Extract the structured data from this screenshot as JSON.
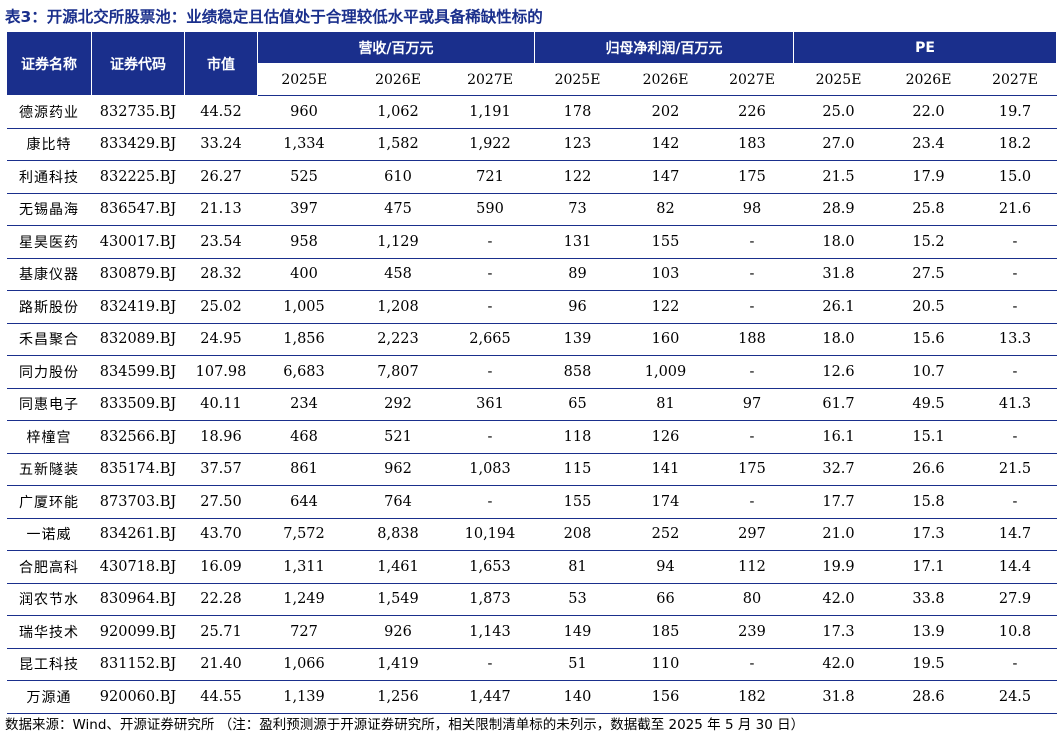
{
  "title": "表3：开源北交所股票池：业绩稳定且估值处于合理较低水平或具备稀缺性标的",
  "headers": {
    "name": "证券名称",
    "code": "证券代码",
    "mktcap": "市值",
    "revenue_group": "营收/百万元",
    "profit_group": "归母净利润/百万元",
    "pe_group": "PE",
    "years": [
      "2025E",
      "2026E",
      "2027E"
    ]
  },
  "rows": [
    {
      "name": "德源药业",
      "code": "832735.BJ",
      "mktcap": "44.52",
      "rev": [
        "960",
        "1,062",
        "1,191"
      ],
      "np": [
        "178",
        "202",
        "226"
      ],
      "pe": [
        "25.0",
        "22.0",
        "19.7"
      ]
    },
    {
      "name": "康比特",
      "code": "833429.BJ",
      "mktcap": "33.24",
      "rev": [
        "1,334",
        "1,582",
        "1,922"
      ],
      "np": [
        "123",
        "142",
        "183"
      ],
      "pe": [
        "27.0",
        "23.4",
        "18.2"
      ]
    },
    {
      "name": "利通科技",
      "code": "832225.BJ",
      "mktcap": "26.27",
      "rev": [
        "525",
        "610",
        "721"
      ],
      "np": [
        "122",
        "147",
        "175"
      ],
      "pe": [
        "21.5",
        "17.9",
        "15.0"
      ]
    },
    {
      "name": "无锡晶海",
      "code": "836547.BJ",
      "mktcap": "21.13",
      "rev": [
        "397",
        "475",
        "590"
      ],
      "np": [
        "73",
        "82",
        "98"
      ],
      "pe": [
        "28.9",
        "25.8",
        "21.6"
      ]
    },
    {
      "name": "星昊医药",
      "code": "430017.BJ",
      "mktcap": "23.54",
      "rev": [
        "958",
        "1,129",
        "-"
      ],
      "np": [
        "131",
        "155",
        "-"
      ],
      "pe": [
        "18.0",
        "15.2",
        "-"
      ]
    },
    {
      "name": "基康仪器",
      "code": "830879.BJ",
      "mktcap": "28.32",
      "rev": [
        "400",
        "458",
        "-"
      ],
      "np": [
        "89",
        "103",
        "-"
      ],
      "pe": [
        "31.8",
        "27.5",
        "-"
      ]
    },
    {
      "name": "路斯股份",
      "code": "832419.BJ",
      "mktcap": "25.02",
      "rev": [
        "1,005",
        "1,208",
        "-"
      ],
      "np": [
        "96",
        "122",
        "-"
      ],
      "pe": [
        "26.1",
        "20.5",
        "-"
      ]
    },
    {
      "name": "禾昌聚合",
      "code": "832089.BJ",
      "mktcap": "24.95",
      "rev": [
        "1,856",
        "2,223",
        "2,665"
      ],
      "np": [
        "139",
        "160",
        "188"
      ],
      "pe": [
        "18.0",
        "15.6",
        "13.3"
      ]
    },
    {
      "name": "同力股份",
      "code": "834599.BJ",
      "mktcap": "107.98",
      "rev": [
        "6,683",
        "7,807",
        "-"
      ],
      "np": [
        "858",
        "1,009",
        "-"
      ],
      "pe": [
        "12.6",
        "10.7",
        "-"
      ]
    },
    {
      "name": "同惠电子",
      "code": "833509.BJ",
      "mktcap": "40.11",
      "rev": [
        "234",
        "292",
        "361"
      ],
      "np": [
        "65",
        "81",
        "97"
      ],
      "pe": [
        "61.7",
        "49.5",
        "41.3"
      ]
    },
    {
      "name": "梓橦宫",
      "code": "832566.BJ",
      "mktcap": "18.96",
      "rev": [
        "468",
        "521",
        "-"
      ],
      "np": [
        "118",
        "126",
        "-"
      ],
      "pe": [
        "16.1",
        "15.1",
        "-"
      ]
    },
    {
      "name": "五新隧装",
      "code": "835174.BJ",
      "mktcap": "37.57",
      "rev": [
        "861",
        "962",
        "1,083"
      ],
      "np": [
        "115",
        "141",
        "175"
      ],
      "pe": [
        "32.7",
        "26.6",
        "21.5"
      ]
    },
    {
      "name": "广厦环能",
      "code": "873703.BJ",
      "mktcap": "27.50",
      "rev": [
        "644",
        "764",
        "-"
      ],
      "np": [
        "155",
        "174",
        "-"
      ],
      "pe": [
        "17.7",
        "15.8",
        "-"
      ]
    },
    {
      "name": "一诺威",
      "code": "834261.BJ",
      "mktcap": "43.70",
      "rev": [
        "7,572",
        "8,838",
        "10,194"
      ],
      "np": [
        "208",
        "252",
        "297"
      ],
      "pe": [
        "21.0",
        "17.3",
        "14.7"
      ]
    },
    {
      "name": "合肥高科",
      "code": "430718.BJ",
      "mktcap": "16.09",
      "rev": [
        "1,311",
        "1,461",
        "1,653"
      ],
      "np": [
        "81",
        "94",
        "112"
      ],
      "pe": [
        "19.9",
        "17.1",
        "14.4"
      ]
    },
    {
      "name": "润农节水",
      "code": "830964.BJ",
      "mktcap": "22.28",
      "rev": [
        "1,249",
        "1,549",
        "1,873"
      ],
      "np": [
        "53",
        "66",
        "80"
      ],
      "pe": [
        "42.0",
        "33.8",
        "27.9"
      ]
    },
    {
      "name": "瑞华技术",
      "code": "920099.BJ",
      "mktcap": "25.71",
      "rev": [
        "727",
        "926",
        "1,143"
      ],
      "np": [
        "149",
        "185",
        "239"
      ],
      "pe": [
        "17.3",
        "13.9",
        "10.8"
      ]
    },
    {
      "name": "昆工科技",
      "code": "831152.BJ",
      "mktcap": "21.40",
      "rev": [
        "1,066",
        "1,419",
        "-"
      ],
      "np": [
        "51",
        "110",
        "-"
      ],
      "pe": [
        "42.0",
        "19.5",
        "-"
      ]
    },
    {
      "name": "万源通",
      "code": "920060.BJ",
      "mktcap": "44.55",
      "rev": [
        "1,139",
        "1,256",
        "1,447"
      ],
      "np": [
        "140",
        "156",
        "182"
      ],
      "pe": [
        "31.8",
        "28.6",
        "24.5"
      ]
    }
  ],
  "footnote": "数据来源：Wind、开源证券研究所 （注：盈利预测源于开源证券研究所，相关限制清单标的未列示，数据截至 2025 年 5 月 30 日）"
}
